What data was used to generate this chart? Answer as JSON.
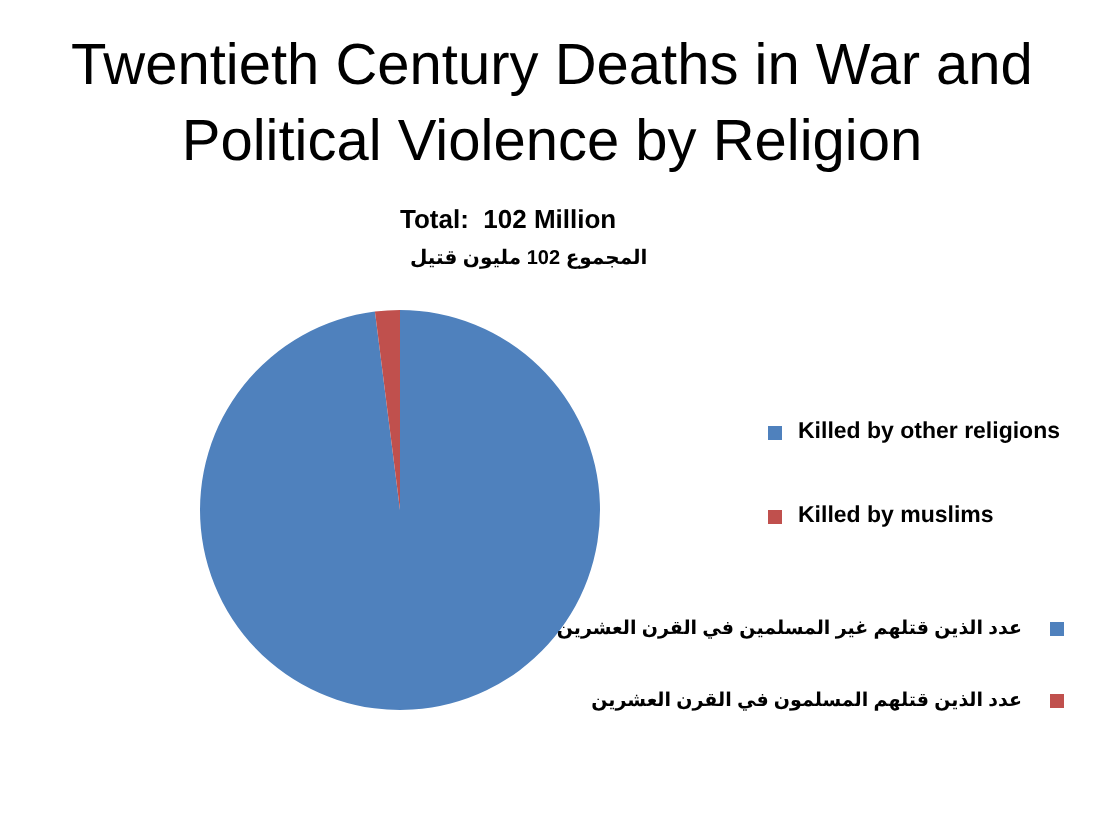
{
  "chart_data": {
    "type": "pie",
    "title": "Twentieth Century Deaths in War and Political Violence by Religion",
    "subtitle": "Total:  102 Million",
    "categories": [
      "Killed by other religions",
      "Killed by muslims"
    ],
    "values": [
      98,
      2
    ],
    "colors": [
      "#4f81bd",
      "#c0504d"
    ],
    "legend": "right",
    "annotations": [
      "المجموع 102 مليون قتيل",
      "عدد الذين قتلهم غير المسلمين في القرن العشرين",
      "عدد الذين قتلهم المسلمون في القرن العشرين"
    ]
  }
}
